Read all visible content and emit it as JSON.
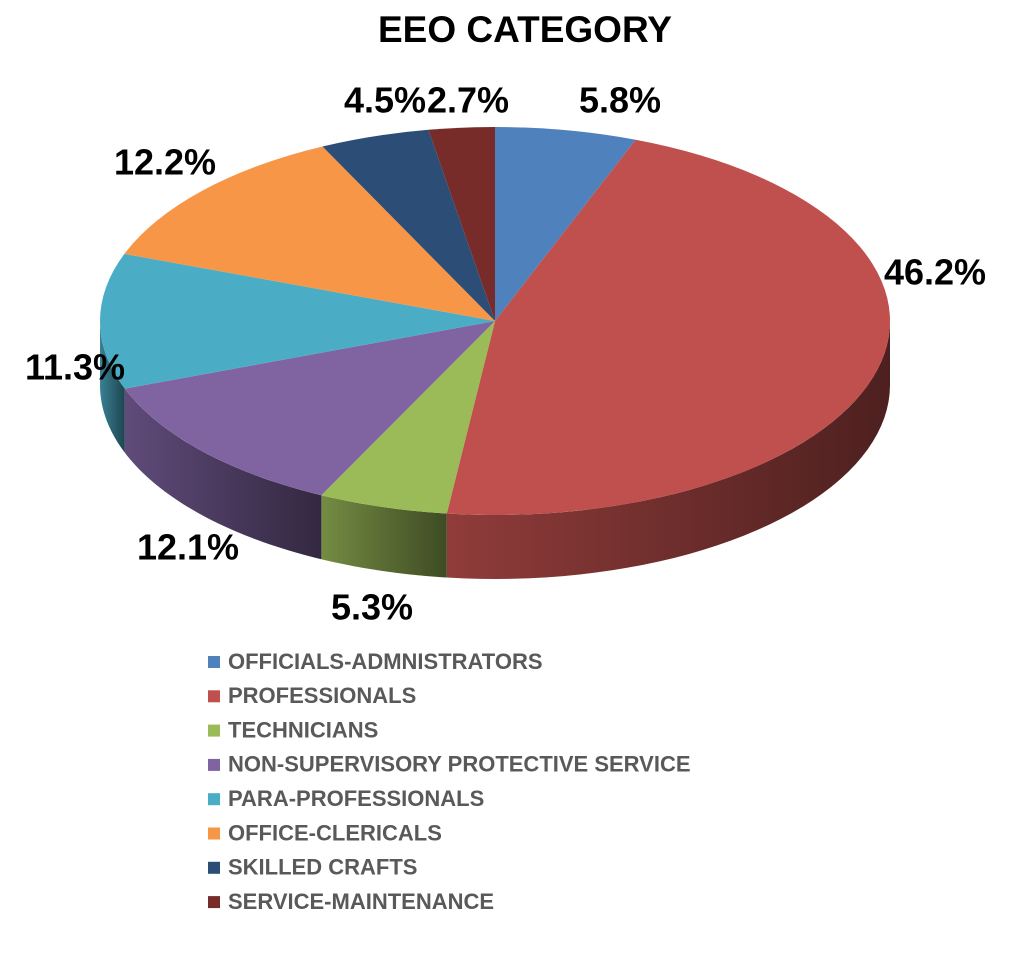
{
  "chart_data": {
    "type": "pie3d",
    "title": "EEO CATEGORY",
    "categories": [
      "OFFICIALS-ADMNISTRATORS",
      "PROFESSIONALS",
      "TECHNICIANS",
      "NON-SUPERVISORY PROTECTIVE SERVICE",
      "PARA-PROFESSIONALS",
      "OFFICE-CLERICALS",
      "SKILLED CRAFTS",
      "SERVICE-MAINTENANCE"
    ],
    "values": [
      5.8,
      46.2,
      5.3,
      12.1,
      11.3,
      12.2,
      4.5,
      2.7
    ],
    "value_labels": [
      "5.8%",
      "46.2%",
      "5.3%",
      "12.1%",
      "11.3%",
      "12.2%",
      "4.5%",
      "2.7%"
    ],
    "colors": [
      "#4f81bd",
      "#c0504d",
      "#9bbb59",
      "#8064a2",
      "#4bacc6",
      "#f79646",
      "#2c4d75",
      "#772c2a"
    ],
    "legend": "bottom"
  }
}
